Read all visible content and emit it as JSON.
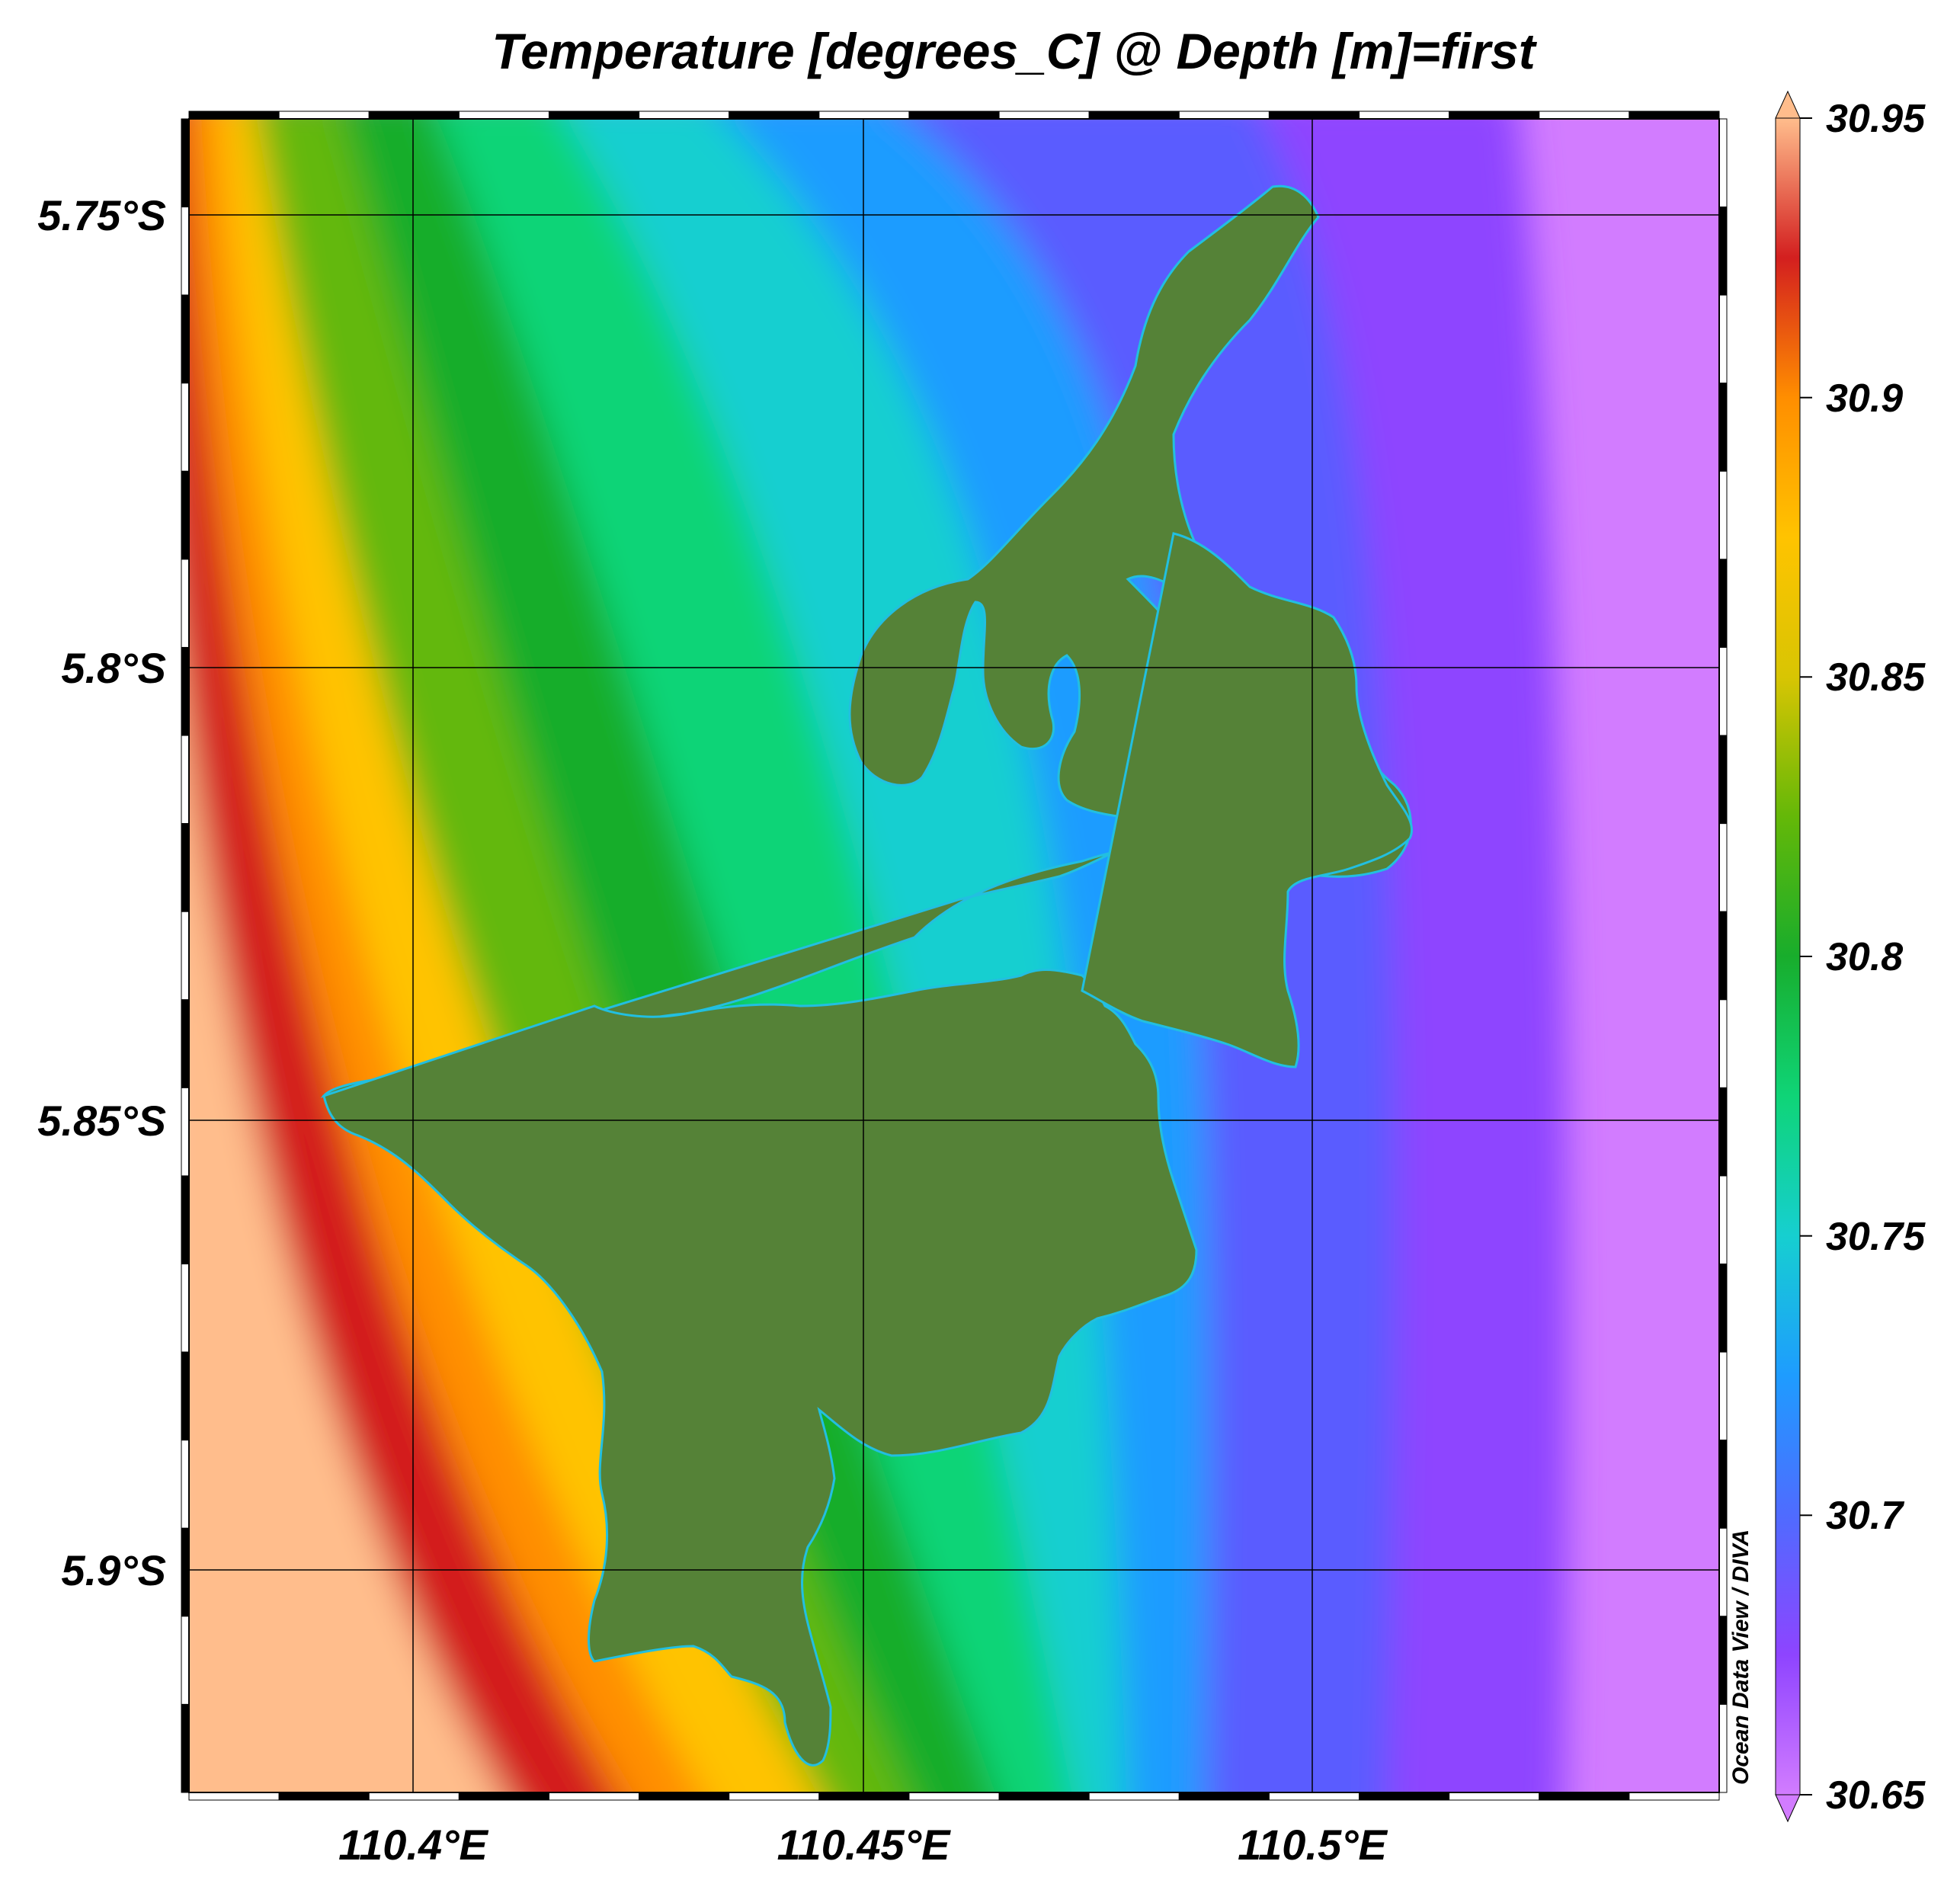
{
  "title": "Temperature [degrees_C] @ Depth [m]=first",
  "watermark": "Ocean Data View / DIVA",
  "x_axis": {
    "ticks": [
      {
        "value": 110.4,
        "label": "110.4°E"
      },
      {
        "value": 110.45,
        "label": "110.45°E"
      },
      {
        "value": 110.5,
        "label": "110.5°E"
      }
    ]
  },
  "y_axis": {
    "ticks": [
      {
        "value": -5.75,
        "label": "5.75°S"
      },
      {
        "value": -5.8,
        "label": "5.8°S"
      },
      {
        "value": -5.85,
        "label": "5.85°S"
      },
      {
        "value": -5.9,
        "label": "5.9°S"
      }
    ]
  },
  "colorbar": {
    "min": 30.65,
    "max": 30.95,
    "tick_labels": [
      "30.95",
      "30.9",
      "30.85",
      "30.8",
      "30.75",
      "30.7",
      "30.65"
    ],
    "stops": [
      "#d27cff",
      "#8e44ff",
      "#4f6bff",
      "#1e9cff",
      "#16cfd0",
      "#0fd477",
      "#18ad2c",
      "#64b808",
      "#d8c503",
      "#ffc300",
      "#ff8e00",
      "#d31f1f",
      "#ffbd8c"
    ]
  },
  "colors": {
    "land": "#558237",
    "coast": "#22bfe0",
    "frame_dark": "#000000",
    "frame_light": "#ffffff",
    "grid": "#000000"
  },
  "chart_data": {
    "type": "heatmap",
    "title": "Temperature [degrees_C] @ Depth [m]=first",
    "variable": "Temperature [degrees_C]",
    "depth": "first",
    "value_range": [
      30.65,
      30.95
    ],
    "x_ticks": [
      "110.4°E",
      "110.45°E",
      "110.5°E"
    ],
    "y_ticks": [
      "5.75°S",
      "5.8°S",
      "5.85°S",
      "5.9°S"
    ],
    "xlim": [
      110.375,
      110.545
    ],
    "ylim": [
      -5.927,
      -5.739
    ],
    "pattern": "Warmest water (~30.95) along the south-west corner, decreasing through ~30.9 and ~30.85 bands toward green (~30.8) in the west-centre, cyan (~30.75) near the island, blue (~30.7) east of it, and coolest (~30.65) along the eastern edge.",
    "grid": true,
    "legend": "colorbar-right"
  }
}
